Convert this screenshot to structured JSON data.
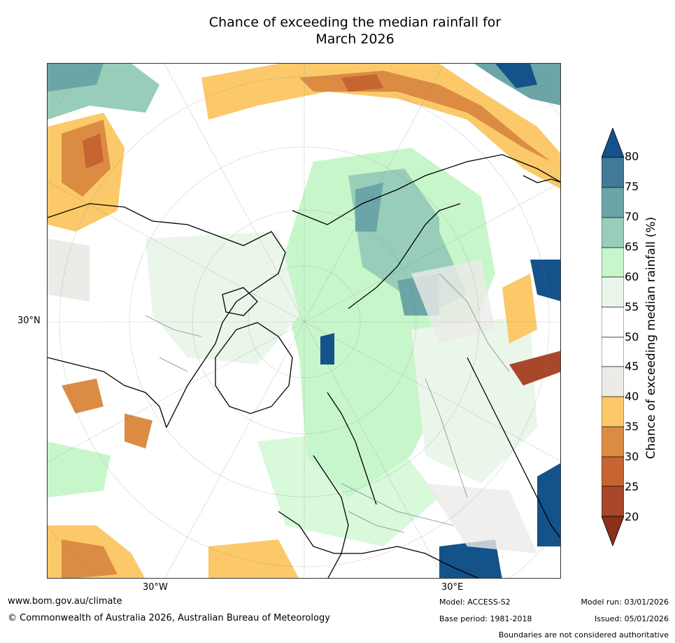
{
  "title": {
    "line1": "Chance of exceeding the median rainfall for",
    "line2": "March 2026"
  },
  "map": {
    "projection": "north-polar-stereographic",
    "labels": {
      "lat_30n": "30°N",
      "lon_30w": "30°W",
      "lon_30e": "30°E"
    }
  },
  "colorbar": {
    "label": "Chance of exceeding median rainfall (%)",
    "ticks": [
      "20",
      "25",
      "30",
      "35",
      "40",
      "45",
      "50",
      "55",
      "60",
      "65",
      "70",
      "75",
      "80"
    ],
    "colors": {
      "below_20": "#8b2f1a",
      "b20_25": "#a8472a",
      "b25_30": "#c66432",
      "b30_35": "#db8c42",
      "b35_40": "#fbc969",
      "b40_45": "#ecebe8",
      "b45_50": "#ffffff",
      "b50_55": "#ffffff",
      "b55_60": "#ebf6ea",
      "b60_65": "#c8f6cb",
      "b65_70": "#98cdb9",
      "b70_75": "#6ba5a8",
      "b75_80": "#427a99",
      "above_80": "#14528a"
    }
  },
  "footer": {
    "website": "www.bom.gov.au/climate",
    "copyright": "© Commonwealth of Australia 2026, Australian Bureau of Meteorology",
    "model": "Model: ACCESS-S2",
    "base_period": "Base period: 1981-2018",
    "model_run": "Model run: 03/01/2026",
    "issued": "Issued: 05/01/2026",
    "disclaimer": "Boundaries are not considered authoritative"
  }
}
